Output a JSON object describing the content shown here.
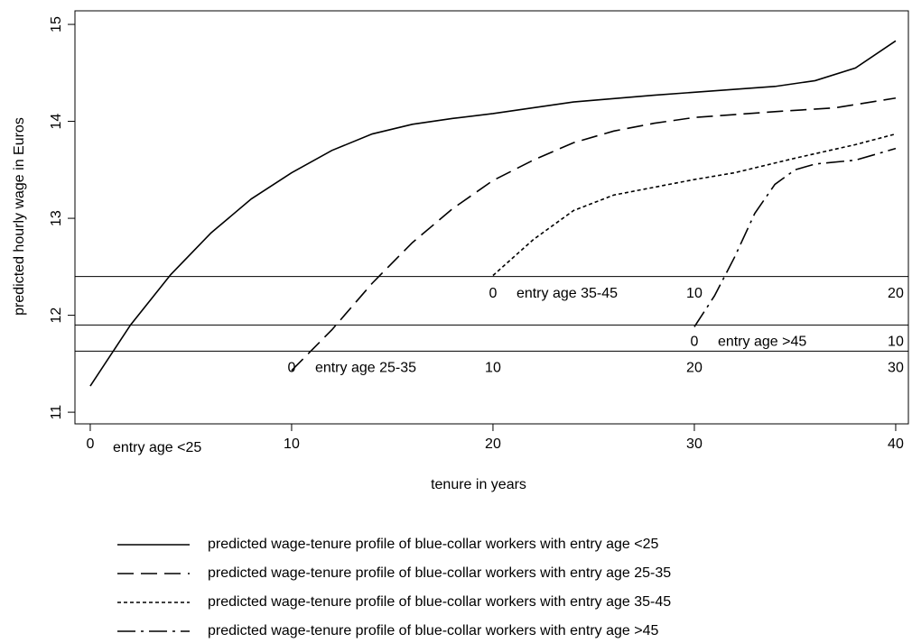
{
  "chart_data": {
    "type": "line",
    "xlabel": "tenure in years",
    "ylabel": "predicted hourly wage in Euros",
    "xlim": [
      -0.76,
      40.63
    ],
    "ylim": [
      10.88,
      15.14
    ],
    "xticks": [
      0,
      10,
      20,
      30,
      40
    ],
    "yticks": [
      11,
      12,
      13,
      14,
      15
    ],
    "x_annotation": "entry age <25",
    "reference_axes": [
      {
        "label": "entry age 35-45",
        "y": 12.4,
        "ticks": [
          {
            "value": 20,
            "label": "0"
          },
          {
            "value": 30,
            "label": "10"
          },
          {
            "value": 40,
            "label": "20"
          }
        ]
      },
      {
        "label": "entry age >45",
        "y": 11.9,
        "ticks": [
          {
            "value": 30,
            "label": "0"
          },
          {
            "value": 40,
            "label": "10"
          }
        ]
      },
      {
        "label": "entry age 25-35",
        "y": 11.63,
        "ticks": [
          {
            "value": 10,
            "label": "0"
          },
          {
            "value": 20,
            "label": "10"
          },
          {
            "value": 30,
            "label": "20"
          },
          {
            "value": 40,
            "label": "30"
          }
        ]
      }
    ],
    "legend": "bottom",
    "series": [
      {
        "name": "predicted wage-tenure profile of blue-collar workers with entry age <25",
        "color": "#000000",
        "dash": "solid",
        "x": [
          0,
          2,
          4,
          6,
          8,
          10,
          12,
          14,
          16,
          18,
          20,
          24,
          28,
          30,
          34,
          36,
          38,
          40
        ],
        "values": [
          11.27,
          11.9,
          12.42,
          12.85,
          13.2,
          13.47,
          13.7,
          13.87,
          13.97,
          14.03,
          14.08,
          14.2,
          14.27,
          14.3,
          14.36,
          14.42,
          14.55,
          14.83
        ]
      },
      {
        "name": "predicted wage-tenure profile of blue-collar workers with entry age 25-35",
        "color": "#000000",
        "dash": "dashed",
        "x": [
          10,
          12,
          14,
          16,
          18,
          20,
          22,
          24,
          26,
          28,
          30,
          34,
          37,
          40
        ],
        "values": [
          11.43,
          11.85,
          12.33,
          12.75,
          13.1,
          13.39,
          13.6,
          13.78,
          13.9,
          13.98,
          14.04,
          14.1,
          14.14,
          14.24
        ]
      },
      {
        "name": "predicted wage-tenure profile of blue-collar workers with entry age 35-45",
        "color": "#000000",
        "dash": "dotted",
        "x": [
          20,
          22,
          24,
          26,
          28,
          30,
          32,
          35,
          38,
          40
        ],
        "values": [
          12.41,
          12.78,
          13.08,
          13.24,
          13.32,
          13.4,
          13.47,
          13.62,
          13.76,
          13.87
        ]
      },
      {
        "name": "predicted wage-tenure profile of blue-collar workers with entry age >45",
        "color": "#000000",
        "dash": "dashdot",
        "x": [
          30,
          31,
          32,
          33,
          34,
          35,
          36,
          38,
          40
        ],
        "values": [
          11.88,
          12.2,
          12.6,
          13.05,
          13.35,
          13.5,
          13.56,
          13.6,
          13.72
        ]
      }
    ]
  }
}
